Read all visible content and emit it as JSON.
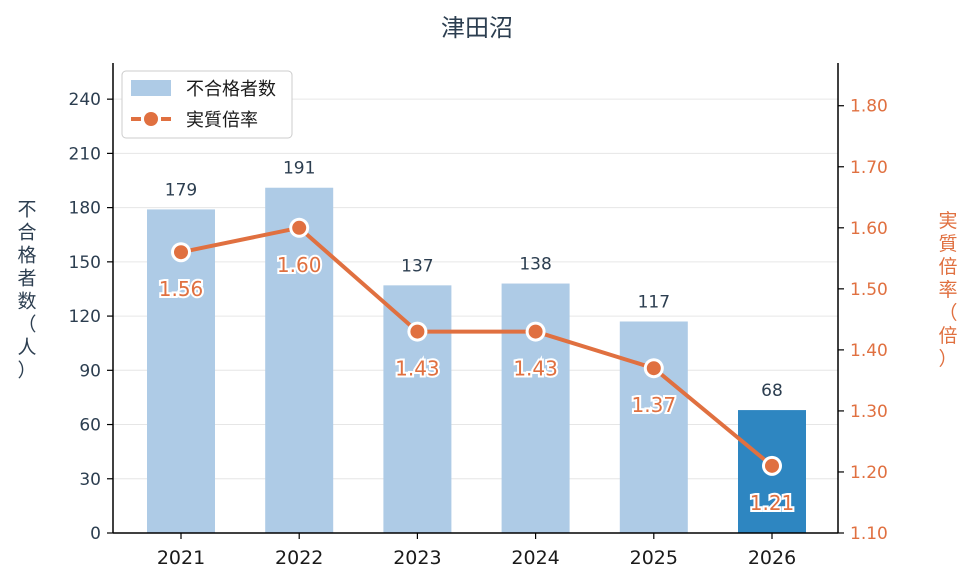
{
  "chart_data": {
    "type": "bar+line",
    "title": "津田沼",
    "categories": [
      "2021",
      "2022",
      "2023",
      "2024",
      "2025",
      "2026"
    ],
    "bar_series": {
      "name": "不合格者数",
      "values": [
        179,
        191,
        137,
        138,
        117,
        68
      ],
      "color": "#aecbe6",
      "highlight_color": "#2e86c1",
      "highlight_index": 5
    },
    "line_series": {
      "name": "実質倍率",
      "values": [
        1.56,
        1.6,
        1.43,
        1.43,
        1.37,
        1.21
      ],
      "labels": [
        "1.56",
        "1.60",
        "1.43",
        "1.43",
        "1.37",
        "1.21"
      ],
      "color": "#e07040"
    },
    "y_left": {
      "label": "不合格者数（人）",
      "lim": [
        0,
        260
      ],
      "ticks": [
        0,
        30,
        60,
        90,
        120,
        150,
        180,
        210,
        240
      ],
      "color": "#2c3e50"
    },
    "y_right": {
      "label": "実質倍率（倍）",
      "lim": [
        1.1,
        1.87
      ],
      "ticks": [
        1.1,
        1.2,
        1.3,
        1.4,
        1.5,
        1.6,
        1.7,
        1.8
      ],
      "tick_labels": [
        "1.10",
        "1.20",
        "1.30",
        "1.40",
        "1.50",
        "1.60",
        "1.70",
        "1.80"
      ],
      "color": "#e07040"
    },
    "grid": true,
    "legend": {
      "position": "top-left",
      "entries": [
        "不合格者数",
        "実質倍率"
      ]
    }
  }
}
